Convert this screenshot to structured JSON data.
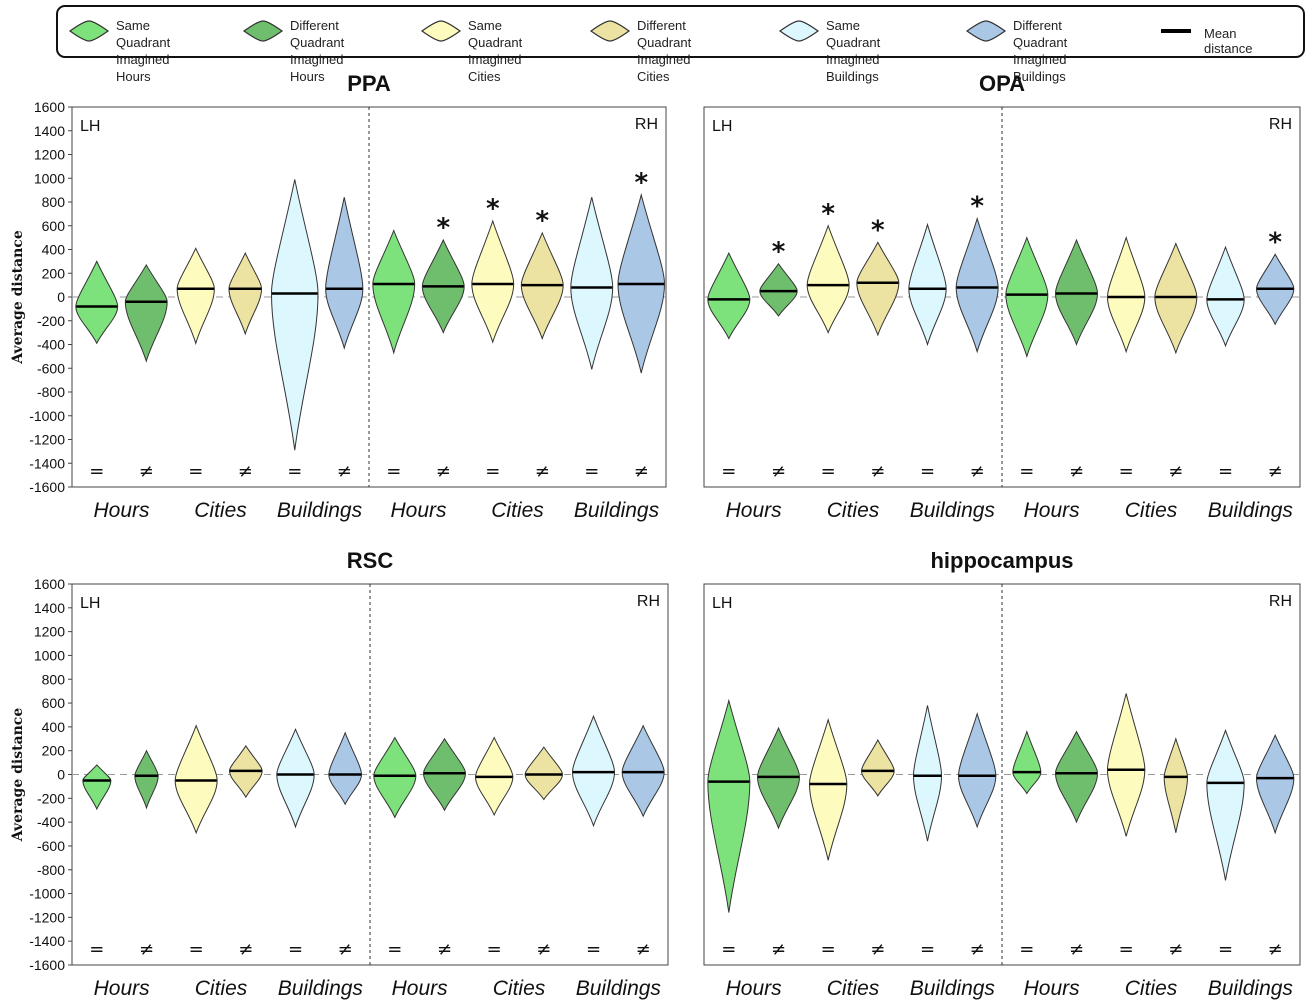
{
  "legend": {
    "items": [
      {
        "label": "Same Quadrant\nImagined Hours",
        "color": "#7ee27c"
      },
      {
        "label": "Different Quadrant\nImagined Hours",
        "color": "#6fbe6d"
      },
      {
        "label": "Same Quadrant\nImagined Cities",
        "color": "#fdfbbd"
      },
      {
        "label": "Different Quadrant\nImagined Cities",
        "color": "#ece3a3"
      },
      {
        "label": "Same Quadrant\nImagined Buildings",
        "color": "#dcf7fd"
      },
      {
        "label": "Different Quadrant\nImagined Buildings",
        "color": "#aac7e6"
      }
    ],
    "mean_label": "Mean distance"
  },
  "chart_data": [
    {
      "type": "violin",
      "title": "PPA",
      "ylabel": "Average distance",
      "ylim": [
        -1600,
        1600
      ],
      "yticks": [
        1600,
        1400,
        1200,
        1000,
        800,
        600,
        400,
        200,
        0,
        -200,
        -400,
        -600,
        -800,
        -1000,
        -1200,
        -1400,
        -1600
      ],
      "hemispheres": [
        "LH",
        "RH"
      ],
      "categories": [
        "Hours",
        "Cities",
        "Buildings",
        "Hours",
        "Cities",
        "Buildings"
      ],
      "condition_symbols": [
        "=",
        "≠"
      ],
      "significance_marker": "*",
      "violins": [
        {
          "hemi": "LH",
          "category": "Hours",
          "condition": "same",
          "mean": -80,
          "min": -390,
          "max": 300,
          "width": 0.9,
          "sig": false
        },
        {
          "hemi": "LH",
          "category": "Hours",
          "condition": "different",
          "mean": -40,
          "min": -540,
          "max": 270,
          "width": 0.9,
          "sig": false
        },
        {
          "hemi": "LH",
          "category": "Cities",
          "condition": "same",
          "mean": 70,
          "min": -390,
          "max": 410,
          "width": 0.8,
          "sig": false
        },
        {
          "hemi": "LH",
          "category": "Cities",
          "condition": "different",
          "mean": 70,
          "min": -310,
          "max": 370,
          "width": 0.7,
          "sig": false
        },
        {
          "hemi": "LH",
          "category": "Buildings",
          "condition": "same",
          "mean": 30,
          "min": -1290,
          "max": 990,
          "width": 1.0,
          "sig": false
        },
        {
          "hemi": "LH",
          "category": "Buildings",
          "condition": "different",
          "mean": 70,
          "min": -430,
          "max": 840,
          "width": 0.8,
          "sig": false
        },
        {
          "hemi": "RH",
          "category": "Hours",
          "condition": "same",
          "mean": 110,
          "min": -470,
          "max": 560,
          "width": 0.9,
          "sig": false
        },
        {
          "hemi": "RH",
          "category": "Hours",
          "condition": "different",
          "mean": 90,
          "min": -300,
          "max": 480,
          "width": 0.9,
          "sig": true
        },
        {
          "hemi": "RH",
          "category": "Cities",
          "condition": "same",
          "mean": 110,
          "min": -380,
          "max": 640,
          "width": 0.9,
          "sig": true
        },
        {
          "hemi": "RH",
          "category": "Cities",
          "condition": "different",
          "mean": 100,
          "min": -350,
          "max": 540,
          "width": 0.9,
          "sig": true
        },
        {
          "hemi": "RH",
          "category": "Buildings",
          "condition": "same",
          "mean": 80,
          "min": -610,
          "max": 840,
          "width": 0.9,
          "sig": false
        },
        {
          "hemi": "RH",
          "category": "Buildings",
          "condition": "different",
          "mean": 110,
          "min": -640,
          "max": 860,
          "width": 1.0,
          "sig": true
        }
      ]
    },
    {
      "type": "violin",
      "title": "OPA",
      "ylabel": "",
      "ylim": [
        -1600,
        1600
      ],
      "yticks": [],
      "hemispheres": [
        "LH",
        "RH"
      ],
      "categories": [
        "Hours",
        "Cities",
        "Buildings",
        "Hours",
        "Cities",
        "Buildings"
      ],
      "condition_symbols": [
        "=",
        "≠"
      ],
      "significance_marker": "*",
      "violins": [
        {
          "hemi": "LH",
          "category": "Hours",
          "condition": "same",
          "mean": -20,
          "min": -350,
          "max": 370,
          "width": 0.9,
          "sig": false
        },
        {
          "hemi": "LH",
          "category": "Hours",
          "condition": "different",
          "mean": 50,
          "min": -160,
          "max": 280,
          "width": 0.8,
          "sig": true
        },
        {
          "hemi": "LH",
          "category": "Cities",
          "condition": "same",
          "mean": 100,
          "min": -300,
          "max": 600,
          "width": 0.9,
          "sig": true
        },
        {
          "hemi": "LH",
          "category": "Cities",
          "condition": "different",
          "mean": 120,
          "min": -320,
          "max": 460,
          "width": 0.9,
          "sig": true
        },
        {
          "hemi": "LH",
          "category": "Buildings",
          "condition": "same",
          "mean": 70,
          "min": -400,
          "max": 610,
          "width": 0.8,
          "sig": false
        },
        {
          "hemi": "LH",
          "category": "Buildings",
          "condition": "different",
          "mean": 80,
          "min": -460,
          "max": 660,
          "width": 0.9,
          "sig": true
        },
        {
          "hemi": "RH",
          "category": "Hours",
          "condition": "same",
          "mean": 20,
          "min": -500,
          "max": 500,
          "width": 0.9,
          "sig": false
        },
        {
          "hemi": "RH",
          "category": "Hours",
          "condition": "different",
          "mean": 30,
          "min": -400,
          "max": 480,
          "width": 0.9,
          "sig": false
        },
        {
          "hemi": "RH",
          "category": "Cities",
          "condition": "same",
          "mean": 0,
          "min": -460,
          "max": 500,
          "width": 0.8,
          "sig": false
        },
        {
          "hemi": "RH",
          "category": "Cities",
          "condition": "different",
          "mean": 0,
          "min": -470,
          "max": 450,
          "width": 0.9,
          "sig": false
        },
        {
          "hemi": "RH",
          "category": "Buildings",
          "condition": "same",
          "mean": -20,
          "min": -410,
          "max": 420,
          "width": 0.8,
          "sig": false
        },
        {
          "hemi": "RH",
          "category": "Buildings",
          "condition": "different",
          "mean": 70,
          "min": -230,
          "max": 360,
          "width": 0.8,
          "sig": true
        }
      ]
    },
    {
      "type": "violin",
      "title": "RSC",
      "ylabel": "Average distance",
      "ylim": [
        -1600,
        1600
      ],
      "yticks": [
        1600,
        1400,
        1200,
        1000,
        800,
        600,
        400,
        200,
        0,
        -200,
        -400,
        -600,
        -800,
        -1000,
        -1200,
        -1400,
        -1600
      ],
      "hemispheres": [
        "LH",
        "RH"
      ],
      "categories": [
        "Hours",
        "Cities",
        "Buildings",
        "Hours",
        "Cities",
        "Buildings"
      ],
      "condition_symbols": [
        "=",
        "≠"
      ],
      "significance_marker": "*",
      "violins": [
        {
          "hemi": "LH",
          "category": "Hours",
          "condition": "same",
          "mean": -50,
          "min": -290,
          "max": 80,
          "width": 0.6,
          "sig": false
        },
        {
          "hemi": "LH",
          "category": "Hours",
          "condition": "different",
          "mean": -10,
          "min": -280,
          "max": 200,
          "width": 0.5,
          "sig": false
        },
        {
          "hemi": "LH",
          "category": "Cities",
          "condition": "same",
          "mean": -50,
          "min": -490,
          "max": 410,
          "width": 0.9,
          "sig": false
        },
        {
          "hemi": "LH",
          "category": "Cities",
          "condition": "different",
          "mean": 30,
          "min": -190,
          "max": 240,
          "width": 0.7,
          "sig": false
        },
        {
          "hemi": "LH",
          "category": "Buildings",
          "condition": "same",
          "mean": 0,
          "min": -440,
          "max": 380,
          "width": 0.8,
          "sig": false
        },
        {
          "hemi": "LH",
          "category": "Buildings",
          "condition": "different",
          "mean": 0,
          "min": -250,
          "max": 350,
          "width": 0.7,
          "sig": false
        },
        {
          "hemi": "RH",
          "category": "Hours",
          "condition": "same",
          "mean": -10,
          "min": -360,
          "max": 310,
          "width": 0.9,
          "sig": false
        },
        {
          "hemi": "RH",
          "category": "Hours",
          "condition": "different",
          "mean": 10,
          "min": -300,
          "max": 300,
          "width": 0.9,
          "sig": false
        },
        {
          "hemi": "RH",
          "category": "Cities",
          "condition": "same",
          "mean": -20,
          "min": -340,
          "max": 310,
          "width": 0.8,
          "sig": false
        },
        {
          "hemi": "RH",
          "category": "Cities",
          "condition": "different",
          "mean": 0,
          "min": -210,
          "max": 230,
          "width": 0.8,
          "sig": false
        },
        {
          "hemi": "RH",
          "category": "Buildings",
          "condition": "same",
          "mean": 20,
          "min": -430,
          "max": 490,
          "width": 0.9,
          "sig": false
        },
        {
          "hemi": "RH",
          "category": "Buildings",
          "condition": "different",
          "mean": 20,
          "min": -350,
          "max": 410,
          "width": 0.9,
          "sig": false
        }
      ]
    },
    {
      "type": "violin",
      "title": "hippocampus",
      "ylabel": "",
      "ylim": [
        -1600,
        1600
      ],
      "yticks": [],
      "hemispheres": [
        "LH",
        "RH"
      ],
      "categories": [
        "Hours",
        "Cities",
        "Buildings",
        "Hours",
        "Cities",
        "Buildings"
      ],
      "condition_symbols": [
        "=",
        "≠"
      ],
      "significance_marker": "*",
      "violins": [
        {
          "hemi": "LH",
          "category": "Hours",
          "condition": "same",
          "mean": -60,
          "min": -1160,
          "max": 620,
          "width": 0.9,
          "sig": false
        },
        {
          "hemi": "LH",
          "category": "Hours",
          "condition": "different",
          "mean": -20,
          "min": -450,
          "max": 390,
          "width": 0.9,
          "sig": false
        },
        {
          "hemi": "LH",
          "category": "Cities",
          "condition": "same",
          "mean": -80,
          "min": -720,
          "max": 460,
          "width": 0.8,
          "sig": false
        },
        {
          "hemi": "LH",
          "category": "Cities",
          "condition": "different",
          "mean": 30,
          "min": -180,
          "max": 290,
          "width": 0.7,
          "sig": false
        },
        {
          "hemi": "LH",
          "category": "Buildings",
          "condition": "same",
          "mean": -10,
          "min": -560,
          "max": 580,
          "width": 0.6,
          "sig": false
        },
        {
          "hemi": "LH",
          "category": "Buildings",
          "condition": "different",
          "mean": -10,
          "min": -440,
          "max": 510,
          "width": 0.8,
          "sig": false
        },
        {
          "hemi": "RH",
          "category": "Hours",
          "condition": "same",
          "mean": 20,
          "min": -160,
          "max": 360,
          "width": 0.6,
          "sig": false
        },
        {
          "hemi": "RH",
          "category": "Hours",
          "condition": "different",
          "mean": 10,
          "min": -400,
          "max": 360,
          "width": 0.9,
          "sig": false
        },
        {
          "hemi": "RH",
          "category": "Cities",
          "condition": "same",
          "mean": 40,
          "min": -520,
          "max": 680,
          "width": 0.8,
          "sig": false
        },
        {
          "hemi": "RH",
          "category": "Cities",
          "condition": "different",
          "mean": -20,
          "min": -490,
          "max": 300,
          "width": 0.5,
          "sig": false
        },
        {
          "hemi": "RH",
          "category": "Buildings",
          "condition": "same",
          "mean": -70,
          "min": -890,
          "max": 370,
          "width": 0.8,
          "sig": false
        },
        {
          "hemi": "RH",
          "category": "Buildings",
          "condition": "different",
          "mean": -30,
          "min": -490,
          "max": 330,
          "width": 0.8,
          "sig": false
        }
      ]
    }
  ]
}
